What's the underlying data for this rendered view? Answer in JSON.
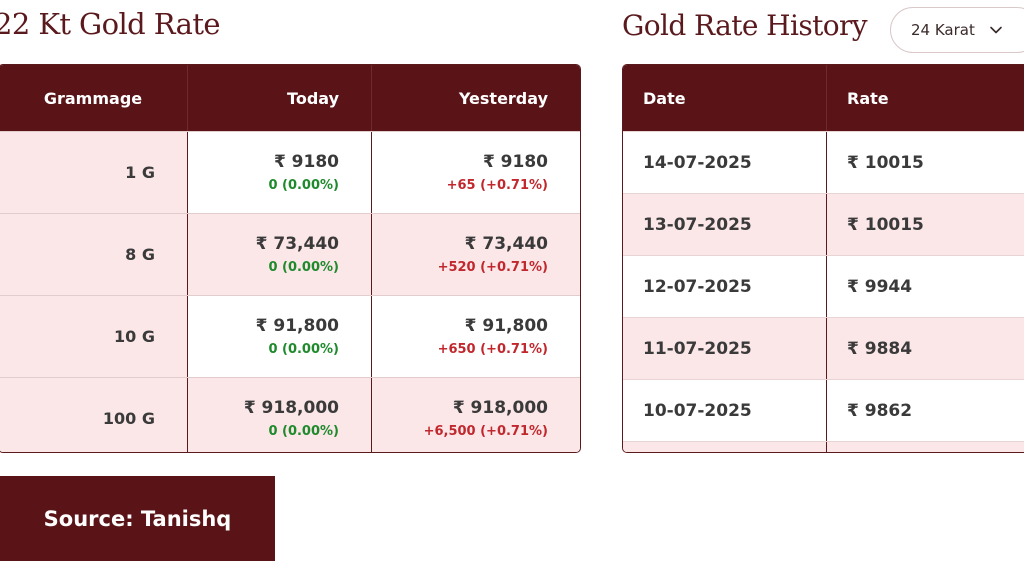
{
  "rate_heading": "22 Kt Gold Rate",
  "history_heading": "Gold Rate History",
  "karat_select": {
    "value": "24 Karat"
  },
  "rate_table": {
    "headers": [
      "Grammage",
      "Today",
      "Yesterday"
    ],
    "rows": [
      {
        "grammage": "1 G",
        "today_price": "₹ 9180",
        "today_change": "0 (0.00%)",
        "yesterday_price": "₹ 9180",
        "yesterday_change": "+65 (+0.71%)"
      },
      {
        "grammage": "8 G",
        "today_price": "₹ 73,440",
        "today_change": "0 (0.00%)",
        "yesterday_price": "₹ 73,440",
        "yesterday_change": "+520 (+0.71%)"
      },
      {
        "grammage": "10 G",
        "today_price": "₹ 91,800",
        "today_change": "0 (0.00%)",
        "yesterday_price": "₹ 91,800",
        "yesterday_change": "+650 (+0.71%)"
      },
      {
        "grammage": "100 G",
        "today_price": "₹ 918,000",
        "today_change": "0 (0.00%)",
        "yesterday_price": "₹ 918,000",
        "yesterday_change": "+6,500 (+0.71%)"
      }
    ]
  },
  "history_table": {
    "headers": [
      "Date",
      "Rate"
    ],
    "rows": [
      {
        "date": "14-07-2025",
        "rate": "₹ 10015"
      },
      {
        "date": "13-07-2025",
        "rate": "₹ 10015"
      },
      {
        "date": "12-07-2025",
        "rate": "₹ 9944"
      },
      {
        "date": "11-07-2025",
        "rate": "₹ 9884"
      },
      {
        "date": "10-07-2025",
        "rate": "₹ 9862"
      }
    ]
  },
  "source": "Source: Tanishq",
  "colors": {
    "maroon": "#5a1418",
    "pink_row": "#fbe6e8",
    "positive_green": "#1e8a2c",
    "change_red": "#c0282d"
  }
}
